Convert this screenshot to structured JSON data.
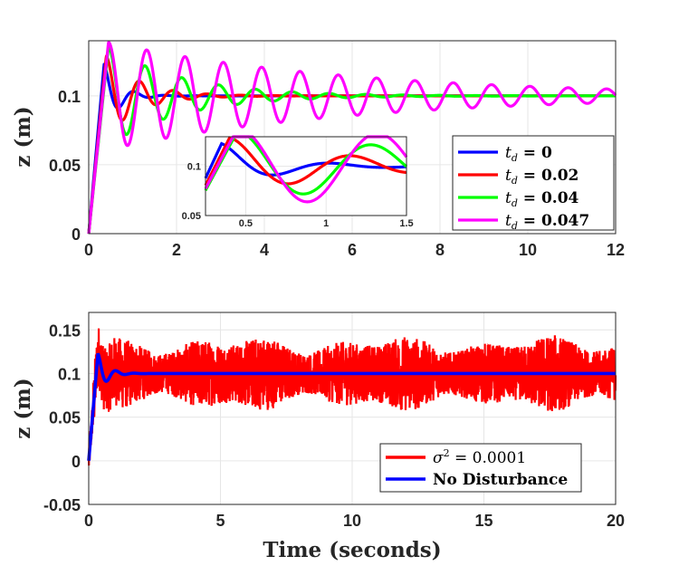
{
  "chart_data": [
    {
      "type": "line",
      "id": "top",
      "xlabel": "",
      "ylabel": "z (m)",
      "xlim": [
        0,
        12
      ],
      "ylim": [
        0,
        0.14
      ],
      "xticks": [
        "0",
        "2",
        "4",
        "6",
        "8",
        "10",
        "12"
      ],
      "xtick_values": [
        0,
        2,
        4,
        6,
        8,
        10,
        12
      ],
      "yticks": [
        "0",
        "0.05",
        "0.1"
      ],
      "ytick_values": [
        0,
        0.05,
        0.1
      ],
      "grid": true,
      "legend_position": "right",
      "series": [
        {
          "name": "t_d = 0",
          "label_main": "t",
          "label_sub": "d",
          "label_value": " = 0",
          "color": "#0000ff",
          "setpoint": 0.1,
          "t0": 0.35,
          "peak": 0.123,
          "zeta": 0.32,
          "wd": 9.0
        },
        {
          "name": "t_d = 0.02",
          "label_main": "t",
          "label_sub": "d",
          "label_value": " = 0.02",
          "color": "#ff0000",
          "setpoint": 0.1,
          "t0": 0.4,
          "peak": 0.129,
          "zeta": 0.16,
          "wd": 8.2
        },
        {
          "name": "t_d = 0.04",
          "label_main": "t",
          "label_sub": "d",
          "label_value": " = 0.04",
          "color": "#00ff00",
          "setpoint": 0.1,
          "t0": 0.45,
          "peak": 0.136,
          "zeta": 0.08,
          "wd": 7.5
        },
        {
          "name": "t_d = 0.047",
          "label_main": "t",
          "label_sub": "d",
          "label_value": " = 0.047",
          "color": "#ff00ff",
          "setpoint": 0.1,
          "t0": 0.45,
          "peak": 0.139,
          "zeta": 0.025,
          "wd": 7.2
        }
      ],
      "inset": {
        "xlim": [
          0.25,
          1.5
        ],
        "ylim": [
          0.05,
          0.13
        ],
        "xticks": [
          "0.5",
          "1",
          "1.5"
        ],
        "xtick_values": [
          0.5,
          1.0,
          1.5
        ],
        "yticks": [
          "0.05",
          "0.1"
        ],
        "ytick_values": [
          0.05,
          0.1
        ]
      }
    },
    {
      "type": "line",
      "id": "bottom",
      "xlabel": "Time (seconds)",
      "ylabel": "z (m)",
      "xlim": [
        0,
        20
      ],
      "ylim": [
        -0.05,
        0.17
      ],
      "xticks": [
        "0",
        "5",
        "10",
        "15",
        "20"
      ],
      "xtick_values": [
        0,
        5,
        10,
        15,
        20
      ],
      "yticks": [
        "-0.05",
        "0",
        "0.05",
        "0.1",
        "0.15"
      ],
      "ytick_values": [
        -0.05,
        0,
        0.05,
        0.1,
        0.15
      ],
      "grid": true,
      "legend_position": "bottom-right",
      "series": [
        {
          "name": "σ² = 0.0001",
          "label_main": "σ",
          "label_sup": "2",
          "label_value": " = 0.0001",
          "color": "#ff0000",
          "setpoint": 0.1,
          "noise_amplitude": 0.045
        },
        {
          "name": "No Disturbance",
          "color": "#0000ff",
          "setpoint": 0.1,
          "t0": 0.35,
          "peak": 0.123,
          "zeta": 0.32,
          "wd": 9.0
        }
      ]
    }
  ]
}
